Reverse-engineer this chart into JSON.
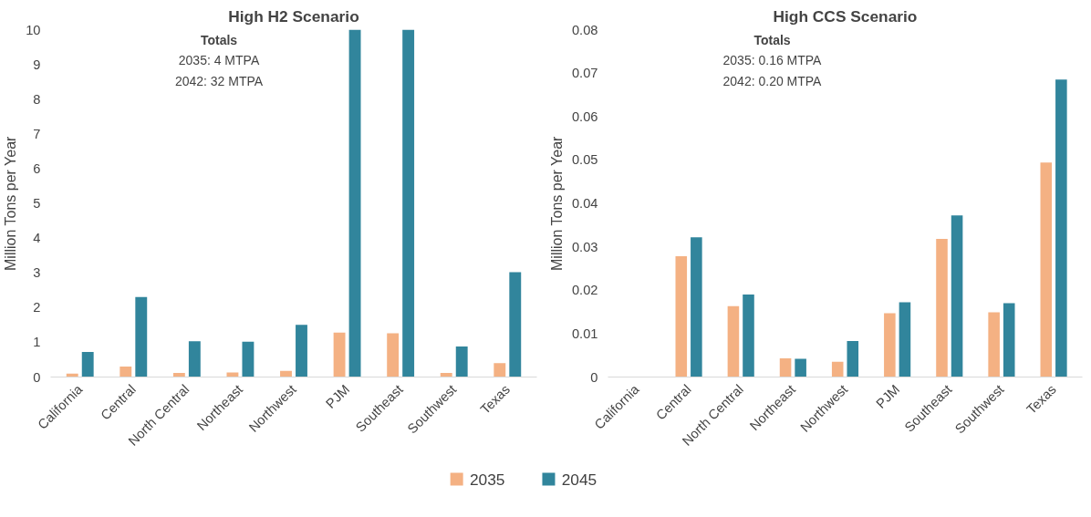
{
  "chart_data": [
    {
      "type": "bar",
      "title": "High H2 Scenario",
      "ylabel": "Million Tons per Year",
      "categories": [
        "California",
        "Central",
        "North Central",
        "Northeast",
        "Northwest",
        "PJM",
        "Southeast",
        "Southwest",
        "Texas"
      ],
      "series": [
        {
          "name": "2035",
          "color": "#f4b183",
          "values": [
            0.1,
            0.3,
            0.12,
            0.13,
            0.18,
            1.28,
            1.26,
            0.12,
            0.4
          ]
        },
        {
          "name": "2045",
          "color": "#31859c",
          "values": [
            0.72,
            2.3,
            1.03,
            1.02,
            1.5,
            10,
            10,
            0.88,
            3.02
          ]
        }
      ],
      "ylim": [
        0,
        10
      ],
      "yticks": [
        0,
        1,
        2,
        3,
        4,
        5,
        6,
        7,
        8,
        9,
        10
      ],
      "grid": false,
      "legend": "bottom",
      "annotations": [
        "Totals",
        "2035: 4 MTPA",
        "2042: 32 MTPA"
      ]
    },
    {
      "type": "bar",
      "title": "High CCS Scenario",
      "ylabel": "Million Tons per Year",
      "categories": [
        "California",
        "Central",
        "North Central",
        "Northeast",
        "Northwest",
        "PJM",
        "Southeast",
        "Southwest",
        "Texas"
      ],
      "series": [
        {
          "color": "#f4b183",
          "values": [
            0,
            0.0278,
            0.0163,
            0.0043,
            0.0035,
            0.0147,
            0.0318,
            0.0149,
            0.0494
          ]
        },
        {
          "color": "#31859c",
          "values": [
            0,
            0.0322,
            0.019,
            0.0042,
            0.0083,
            0.0172,
            0.0372,
            0.017,
            0.0685
          ]
        }
      ],
      "ylim": [
        0,
        0.08
      ],
      "yticks": [
        0,
        0.01,
        0.02,
        0.03,
        0.04,
        0.05,
        0.06,
        0.07,
        0.08
      ],
      "grid": false,
      "annotations": [
        "Totals",
        "2035: 0.16 MTPA",
        "2042: 0.20 MTPA"
      ]
    }
  ]
}
